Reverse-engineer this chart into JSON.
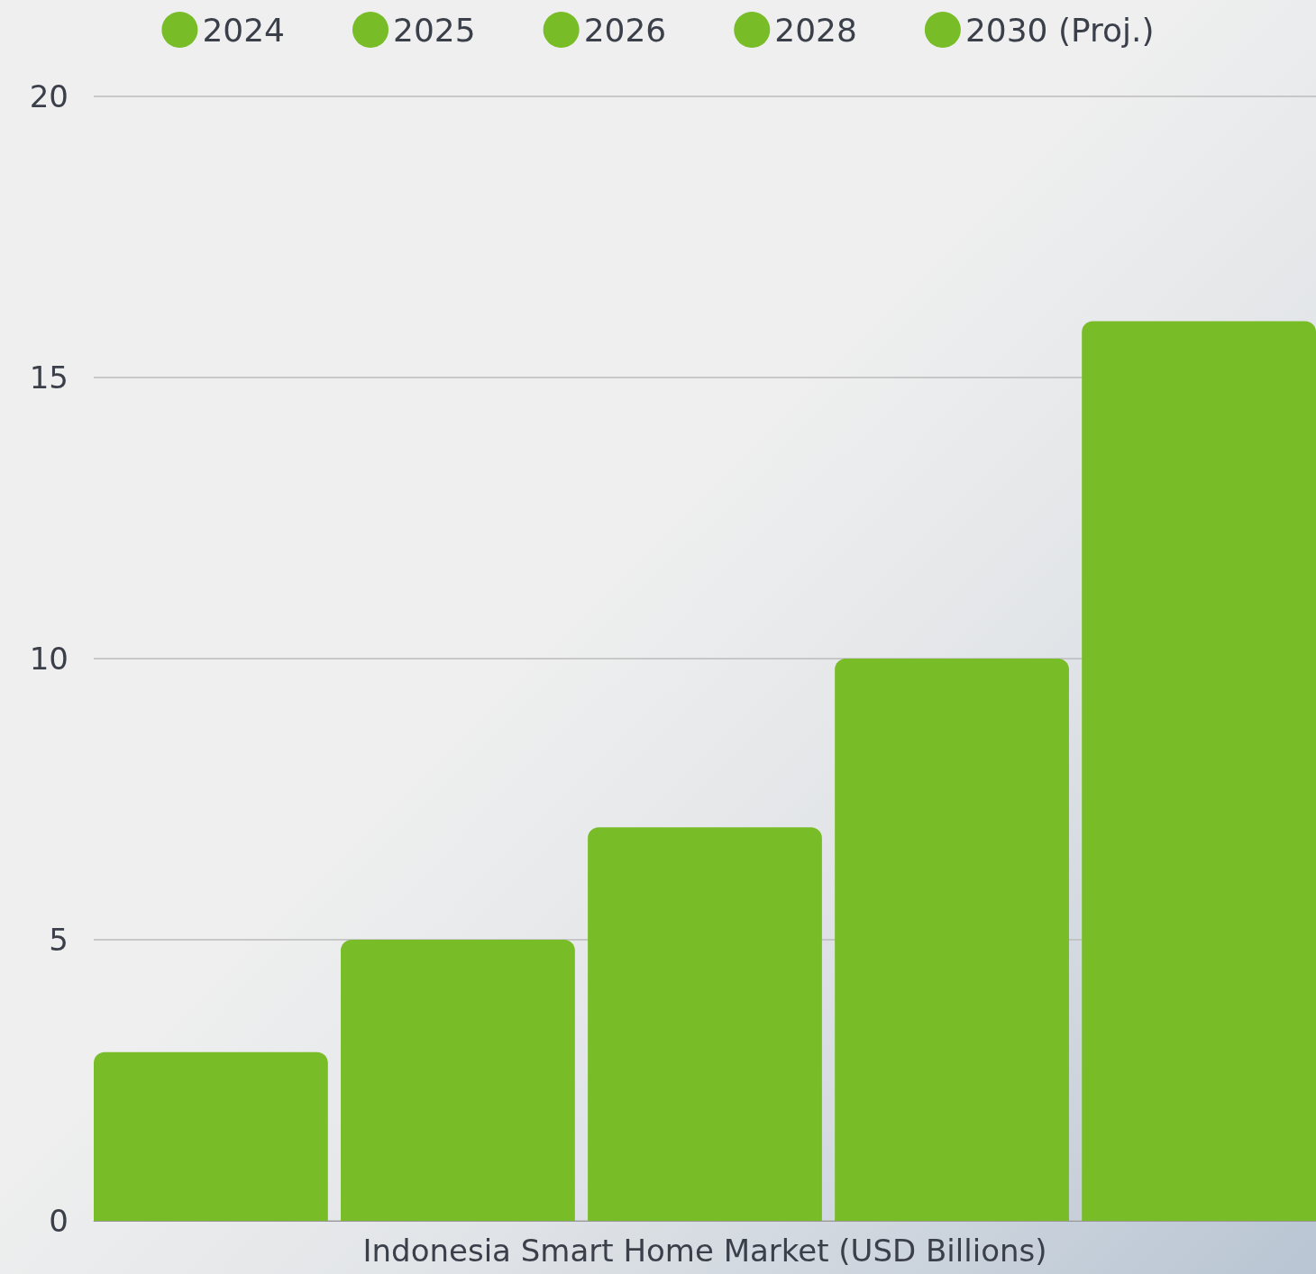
{
  "chart_data": {
    "type": "bar",
    "categories": [
      "Indonesia Smart Home Market (USD Billions)"
    ],
    "series": [
      {
        "name": "2024",
        "color": "#78bc27",
        "values": [
          3
        ]
      },
      {
        "name": "2025",
        "color": "#78bc27",
        "values": [
          5
        ]
      },
      {
        "name": "2026",
        "color": "#78bc27",
        "values": [
          7
        ]
      },
      {
        "name": "2028",
        "color": "#78bc27",
        "values": [
          10
        ]
      },
      {
        "name": "2030 (Proj.)",
        "color": "#78bc27",
        "values": [
          16
        ]
      }
    ],
    "ylim": [
      0,
      20
    ],
    "yticks": [
      0,
      5,
      10,
      15,
      20
    ],
    "grid": "y",
    "legend": "top"
  }
}
